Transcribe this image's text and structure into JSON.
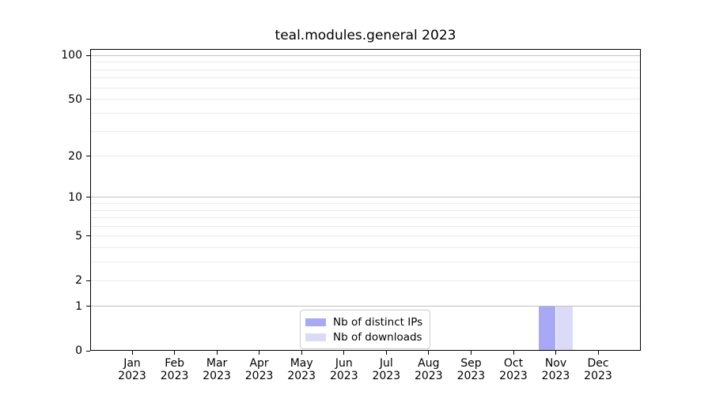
{
  "chart_data": {
    "type": "bar",
    "title": "teal.modules.general 2023",
    "xlabel": "",
    "ylabel": "",
    "categories": [
      "Jan",
      "Feb",
      "Mar",
      "Apr",
      "May",
      "Jun",
      "Jul",
      "Aug",
      "Sep",
      "Oct",
      "Nov",
      "Dec"
    ],
    "category_year": "2023",
    "series": [
      {
        "name": "Nb of distinct IPs",
        "color": "#a8a8f4",
        "values": [
          0,
          0,
          0,
          0,
          0,
          0,
          0,
          0,
          0,
          0,
          1,
          0
        ]
      },
      {
        "name": "Nb of downloads",
        "color": "#dbdbf8",
        "values": [
          0,
          0,
          0,
          0,
          0,
          0,
          0,
          0,
          0,
          0,
          1,
          0
        ]
      }
    ],
    "yscale": "log1p",
    "ylim": [
      0,
      111
    ],
    "yticks": [
      0,
      1,
      2,
      5,
      10,
      20,
      50,
      100
    ],
    "major_gridlines": [
      1,
      10,
      100
    ],
    "minor_gridlines": [
      2,
      3,
      4,
      5,
      6,
      7,
      8,
      9,
      20,
      30,
      40,
      50,
      60,
      70,
      80,
      90
    ],
    "grid_on": true,
    "legend_position": "lower center",
    "colors": {
      "major_grid": "#c0c0c0",
      "minor_grid": "#ececec",
      "spine": "#000000",
      "text": "#000000",
      "legend_border": "#cccccc"
    }
  }
}
